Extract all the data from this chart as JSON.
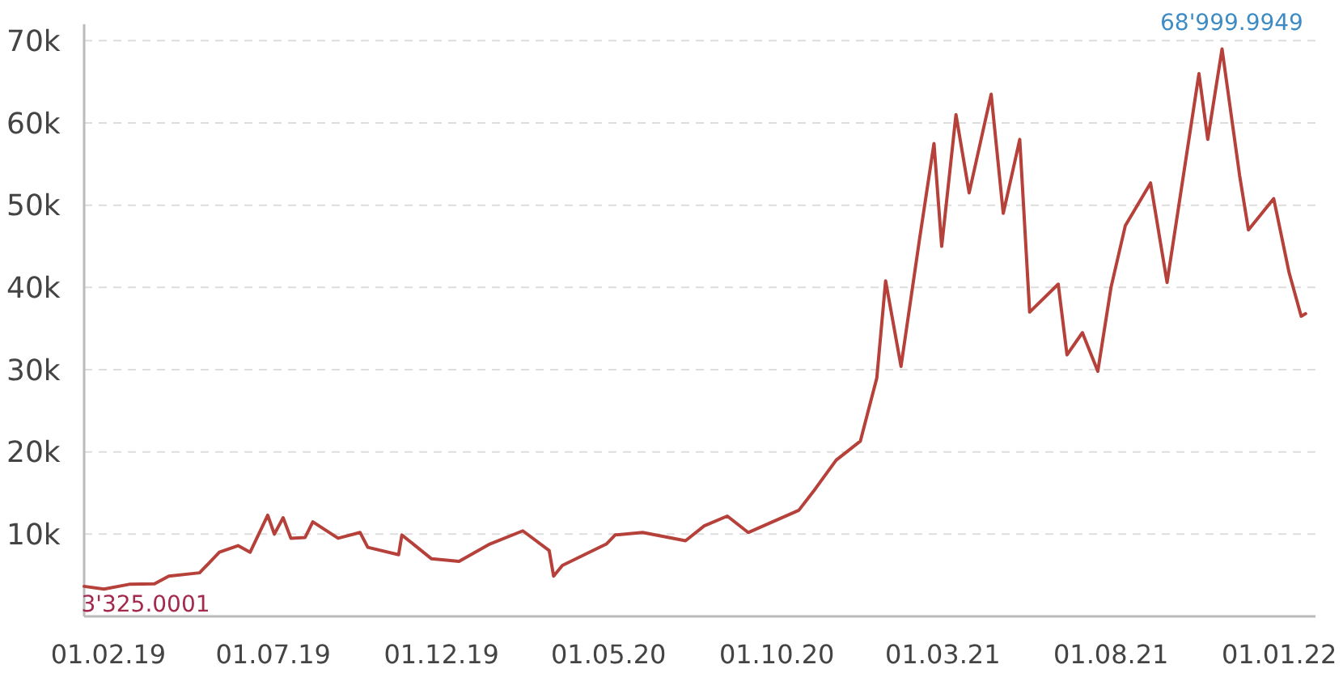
{
  "chart_data": {
    "type": "line",
    "grid": "y",
    "line_style": "solid",
    "marker": "none",
    "xlim": [
      "2019-01-10",
      "2022-02-03"
    ],
    "ylim": [
      0,
      72000
    ],
    "xticks": [
      {
        "value": "2019-02-01",
        "label": "01.02.19"
      },
      {
        "value": "2019-07-01",
        "label": "01.07.19"
      },
      {
        "value": "2019-12-01",
        "label": "01.12.19"
      },
      {
        "value": "2020-05-01",
        "label": "01.05.20"
      },
      {
        "value": "2020-10-01",
        "label": "01.10.20"
      },
      {
        "value": "2021-03-01",
        "label": "01.03.21"
      },
      {
        "value": "2021-08-01",
        "label": "01.08.21"
      },
      {
        "value": "2022-01-01",
        "label": "01.01.22"
      }
    ],
    "yticks": [
      {
        "value": 10000,
        "label": "10k"
      },
      {
        "value": 20000,
        "label": "20k"
      },
      {
        "value": 30000,
        "label": "30k"
      },
      {
        "value": 40000,
        "label": "40k"
      },
      {
        "value": 50000,
        "label": "50k"
      },
      {
        "value": 60000,
        "label": "60k"
      },
      {
        "value": 70000,
        "label": "70k"
      }
    ],
    "x": [
      "2019-01-10",
      "2019-01-28",
      "2019-02-20",
      "2019-03-15",
      "2019-03-28",
      "2019-04-25",
      "2019-05-13",
      "2019-05-30",
      "2019-06-10",
      "2019-06-26",
      "2019-07-02",
      "2019-07-10",
      "2019-07-17",
      "2019-07-30",
      "2019-08-06",
      "2019-08-29",
      "2019-09-18",
      "2019-09-25",
      "2019-10-23",
      "2019-10-26",
      "2019-11-22",
      "2019-12-17",
      "2020-01-14",
      "2020-02-13",
      "2020-03-08",
      "2020-03-12",
      "2020-03-20",
      "2020-04-29",
      "2020-05-07",
      "2020-06-01",
      "2020-07-10",
      "2020-07-27",
      "2020-08-17",
      "2020-09-05",
      "2020-10-21",
      "2020-11-05",
      "2020-11-24",
      "2020-12-16",
      "2020-12-31",
      "2021-01-08",
      "2021-01-22",
      "2021-02-08",
      "2021-02-21",
      "2021-02-28",
      "2021-03-13",
      "2021-03-25",
      "2021-04-14",
      "2021-04-25",
      "2021-05-10",
      "2021-05-19",
      "2021-06-14",
      "2021-06-22",
      "2021-07-06",
      "2021-07-20",
      "2021-08-01",
      "2021-08-14",
      "2021-09-06",
      "2021-09-21",
      "2021-10-20",
      "2021-10-28",
      "2021-11-10",
      "2021-11-26",
      "2021-12-04",
      "2021-12-27",
      "2022-01-10",
      "2022-01-21",
      "2022-01-25"
    ],
    "series": [
      {
        "color": "#b5413a",
        "values": [
          3650,
          3325,
          3900,
          3950,
          4900,
          5300,
          7800,
          8600,
          7800,
          12300,
          10000,
          12000,
          9500,
          9600,
          11500,
          9500,
          10200,
          8400,
          7500,
          9900,
          7000,
          6700,
          8800,
          10400,
          8000,
          4900,
          6200,
          8800,
          9900,
          10200,
          9200,
          11000,
          12200,
          10200,
          12900,
          15500,
          19000,
          21300,
          29000,
          40800,
          30400,
          46000,
          57500,
          45000,
          61000,
          51500,
          63500,
          49000,
          58000,
          37000,
          40400,
          31800,
          34500,
          29800,
          40000,
          47500,
          52700,
          40600,
          66000,
          58000,
          69000,
          53600,
          47000,
          50800,
          41800,
          36500,
          36800
        ]
      }
    ],
    "annotations": [
      {
        "text": "3'325.0001",
        "x": "2019-01-28",
        "y": 3325
      },
      {
        "text": "68'999.9949",
        "x": "2021-11-10",
        "y": 69000
      }
    ]
  }
}
